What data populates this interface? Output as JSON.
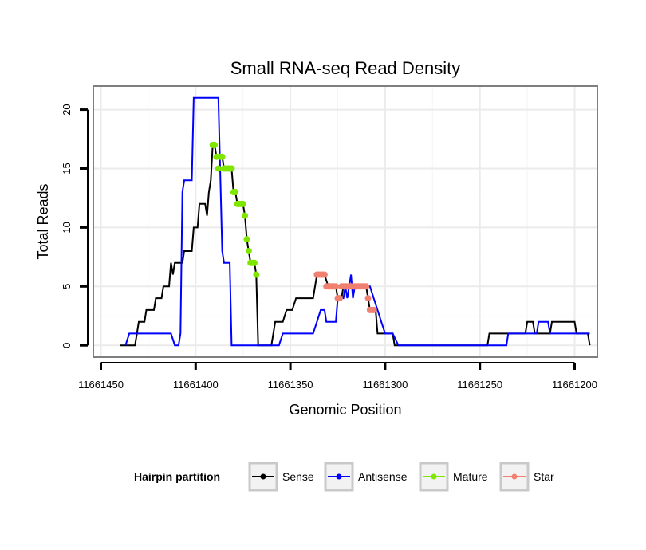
{
  "chart_data": {
    "type": "line",
    "title": "Small RNA-seq Read Density",
    "xlabel": "Genomic Position",
    "ylabel": "Total Reads",
    "x_reversed": true,
    "xlim": [
      11661454,
      11661188
    ],
    "ylim": [
      -1,
      22
    ],
    "xticks": [
      11661450,
      11661400,
      11661350,
      11661300,
      11661250,
      11661200
    ],
    "xtick_labels": [
      "11661450",
      "11661400",
      "11661350",
      "11661300",
      "11661250",
      "11661200"
    ],
    "yticks": [
      0,
      5,
      10,
      15,
      20
    ],
    "ytick_labels": [
      "0",
      "5",
      "10",
      "15",
      "20"
    ],
    "grid": true,
    "legend": {
      "title": "Hairpin partition",
      "position": "bottom",
      "entries": [
        "Sense",
        "Antisense",
        "Mature",
        "Star"
      ]
    },
    "series": [
      {
        "name": "Sense",
        "color": "#000000",
        "points": [
          [
            11661440,
            0
          ],
          [
            11661432,
            0
          ],
          [
            11661430,
            2
          ],
          [
            11661427,
            2
          ],
          [
            11661426,
            3
          ],
          [
            11661422,
            3
          ],
          [
            11661421,
            4
          ],
          [
            11661418,
            4
          ],
          [
            11661417,
            5
          ],
          [
            11661414,
            5
          ],
          [
            11661413,
            7
          ],
          [
            11661412,
            6
          ],
          [
            11661411,
            7
          ],
          [
            11661407,
            7
          ],
          [
            11661406,
            8
          ],
          [
            11661402,
            8
          ],
          [
            11661401,
            10
          ],
          [
            11661399,
            10
          ],
          [
            11661398,
            12
          ],
          [
            11661395,
            12
          ],
          [
            11661394,
            11
          ],
          [
            11661393,
            13
          ],
          [
            11661392,
            14
          ],
          [
            11661391,
            17
          ],
          [
            11661390,
            17
          ],
          [
            11661389,
            16
          ],
          [
            11661386,
            16
          ],
          [
            11661385,
            15
          ],
          [
            11661381,
            15
          ],
          [
            11661380,
            13
          ],
          [
            11661379,
            13
          ],
          [
            11661378,
            12
          ],
          [
            11661375,
            12
          ],
          [
            11661374,
            11
          ],
          [
            11661373,
            9
          ],
          [
            11661372,
            8
          ],
          [
            11661371,
            7
          ],
          [
            11661369,
            7
          ],
          [
            11661368,
            6
          ],
          [
            11661367,
            0
          ],
          [
            11661360,
            0
          ],
          [
            11661358,
            2
          ],
          [
            11661354,
            2
          ],
          [
            11661352,
            3
          ],
          [
            11661349,
            3
          ],
          [
            11661347,
            4
          ],
          [
            11661338,
            4
          ],
          [
            11661337,
            5
          ],
          [
            11661336,
            6
          ],
          [
            11661332,
            6
          ],
          [
            11661330,
            5
          ],
          [
            11661326,
            5
          ],
          [
            11661325,
            4
          ],
          [
            11661323,
            4
          ],
          [
            11661322,
            5
          ],
          [
            11661315,
            5
          ],
          [
            11661314,
            5
          ],
          [
            11661313,
            5
          ],
          [
            11661310,
            5
          ],
          [
            11661309,
            4
          ],
          [
            11661308,
            3
          ],
          [
            11661305,
            3
          ],
          [
            11661304,
            1
          ],
          [
            11661296,
            1
          ],
          [
            11661295,
            0
          ],
          [
            11661246,
            0
          ],
          [
            11661245,
            1
          ],
          [
            11661226,
            1
          ],
          [
            11661225,
            2
          ],
          [
            11661222,
            2
          ],
          [
            11661221,
            1
          ],
          [
            11661213,
            1
          ],
          [
            11661212,
            2
          ],
          [
            11661200,
            2
          ],
          [
            11661199,
            1
          ],
          [
            11661193,
            1
          ],
          [
            11661192,
            0
          ]
        ]
      },
      {
        "name": "Antisense",
        "color": "#0000ff",
        "points": [
          [
            11661437,
            0
          ],
          [
            11661435,
            1
          ],
          [
            11661413,
            1
          ],
          [
            11661411,
            0
          ],
          [
            11661409,
            0
          ],
          [
            11661408,
            1
          ],
          [
            11661407,
            13
          ],
          [
            11661406,
            14
          ],
          [
            11661402,
            14
          ],
          [
            11661401,
            21
          ],
          [
            11661388,
            21
          ],
          [
            11661386,
            8
          ],
          [
            11661385,
            7
          ],
          [
            11661382,
            7
          ],
          [
            11661381,
            0
          ],
          [
            11661356,
            0
          ],
          [
            11661354,
            1
          ],
          [
            11661338,
            1
          ],
          [
            11661336,
            2
          ],
          [
            11661334,
            3
          ],
          [
            11661332,
            3
          ],
          [
            11661331,
            2
          ],
          [
            11661326,
            2
          ],
          [
            11661325,
            4
          ],
          [
            11661322,
            4
          ],
          [
            11661321,
            5
          ],
          [
            11661320,
            4
          ],
          [
            11661319,
            5
          ],
          [
            11661318,
            6
          ],
          [
            11661317,
            4
          ],
          [
            11661316,
            5
          ],
          [
            11661308,
            5
          ],
          [
            11661306,
            4
          ],
          [
            11661304,
            3
          ],
          [
            11661302,
            2
          ],
          [
            11661300,
            1
          ],
          [
            11661298,
            1
          ],
          [
            11661296,
            1
          ],
          [
            11661293,
            0
          ],
          [
            11661236,
            0
          ],
          [
            11661235,
            1
          ],
          [
            11661220,
            1
          ],
          [
            11661219,
            2
          ],
          [
            11661214,
            2
          ],
          [
            11661213,
            1
          ],
          [
            11661201,
            1
          ],
          [
            11661200,
            1
          ],
          [
            11661198,
            1
          ],
          [
            11661192,
            1
          ]
        ]
      },
      {
        "name": "Mature",
        "color": "#7fe600",
        "points": [
          [
            11661391,
            17
          ],
          [
            11661390,
            17
          ],
          [
            11661389,
            16
          ],
          [
            11661388,
            15
          ],
          [
            11661387,
            16
          ],
          [
            11661386,
            16
          ],
          [
            11661385,
            15
          ],
          [
            11661384,
            15
          ],
          [
            11661383,
            15
          ],
          [
            11661382,
            15
          ],
          [
            11661381,
            15
          ],
          [
            11661380,
            13
          ],
          [
            11661379,
            13
          ],
          [
            11661378,
            12
          ],
          [
            11661377,
            12
          ],
          [
            11661376,
            12
          ],
          [
            11661375,
            12
          ],
          [
            11661374,
            11
          ],
          [
            11661373,
            9
          ],
          [
            11661372,
            8
          ],
          [
            11661371,
            7
          ],
          [
            11661370,
            7
          ],
          [
            11661369,
            7
          ],
          [
            11661368,
            6
          ]
        ]
      },
      {
        "name": "Star",
        "color": "#f08070",
        "points": [
          [
            11661336,
            6
          ],
          [
            11661335,
            6
          ],
          [
            11661334,
            6
          ],
          [
            11661333,
            6
          ],
          [
            11661332,
            6
          ],
          [
            11661331,
            5
          ],
          [
            11661330,
            5
          ],
          [
            11661329,
            5
          ],
          [
            11661328,
            5
          ],
          [
            11661327,
            5
          ],
          [
            11661326,
            5
          ],
          [
            11661325,
            4
          ],
          [
            11661324,
            4
          ],
          [
            11661323,
            5
          ],
          [
            11661322,
            5
          ],
          [
            11661321,
            5
          ],
          [
            11661320,
            5
          ],
          [
            11661319,
            5
          ],
          [
            11661318,
            5
          ],
          [
            11661317,
            5
          ],
          [
            11661316,
            5
          ],
          [
            11661315,
            5
          ],
          [
            11661314,
            5
          ],
          [
            11661313,
            5
          ],
          [
            11661312,
            5
          ],
          [
            11661311,
            5
          ],
          [
            11661310,
            5
          ],
          [
            11661309,
            4
          ],
          [
            11661308,
            3
          ],
          [
            11661307,
            3
          ],
          [
            11661306,
            3
          ]
        ]
      }
    ]
  }
}
